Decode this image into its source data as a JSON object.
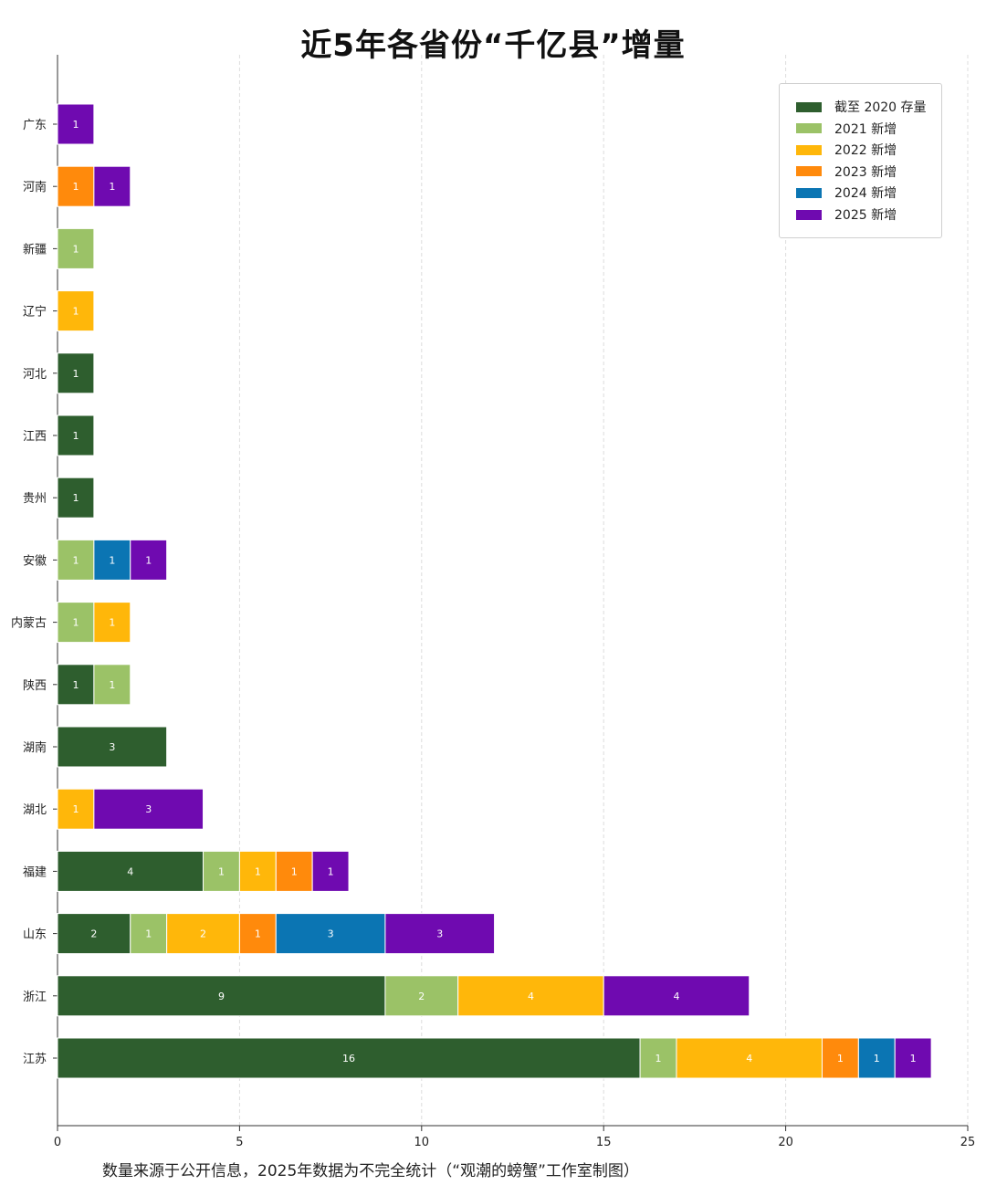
{
  "title": "近5年各省份“千亿县”增量",
  "footnote": "数量来源于公开信息，2025年数据为不完全统计（“观潮的螃蟹”工作室制图）",
  "chart_data": {
    "type": "bar",
    "orientation": "horizontal",
    "stacked": true,
    "title": "近5年各省份“千亿县”增量",
    "xlabel": "",
    "ylabel": "",
    "xlim": [
      0,
      25
    ],
    "xticks": [
      0,
      5,
      10,
      15,
      20,
      25
    ],
    "grid": "vertical dashed",
    "legend_position": "top-right",
    "categories": [
      "广东",
      "河南",
      "新疆",
      "辽宁",
      "河北",
      "江西",
      "贵州",
      "安徽",
      "内蒙古",
      "陕西",
      "湖南",
      "湖北",
      "福建",
      "山东",
      "浙江",
      "江苏"
    ],
    "series": [
      {
        "name": "截至 2020 存量",
        "color": "#2e5e2e",
        "values": [
          0,
          0,
          0,
          0,
          1,
          1,
          1,
          0,
          0,
          1,
          3,
          0,
          4,
          2,
          9,
          16
        ]
      },
      {
        "name": "2021 新增",
        "color": "#9bc267",
        "values": [
          0,
          0,
          1,
          0,
          0,
          0,
          0,
          1,
          1,
          1,
          0,
          0,
          1,
          1,
          2,
          1
        ]
      },
      {
        "name": "2022 新增",
        "color": "#ffb70a",
        "values": [
          0,
          0,
          0,
          1,
          0,
          0,
          0,
          0,
          1,
          0,
          0,
          1,
          1,
          2,
          4,
          4
        ]
      },
      {
        "name": "2023 新增",
        "color": "#ff8a0c",
        "values": [
          0,
          1,
          0,
          0,
          0,
          0,
          0,
          0,
          0,
          0,
          0,
          0,
          1,
          1,
          0,
          1
        ]
      },
      {
        "name": "2024 新增",
        "color": "#0b75b3",
        "values": [
          0,
          0,
          0,
          0,
          0,
          0,
          0,
          1,
          0,
          0,
          0,
          0,
          0,
          3,
          0,
          1
        ]
      },
      {
        "name": "2025 新增",
        "color": "#6f0ab0",
        "values": [
          1,
          1,
          0,
          0,
          0,
          0,
          0,
          1,
          0,
          0,
          0,
          3,
          1,
          3,
          4,
          1
        ]
      }
    ]
  }
}
